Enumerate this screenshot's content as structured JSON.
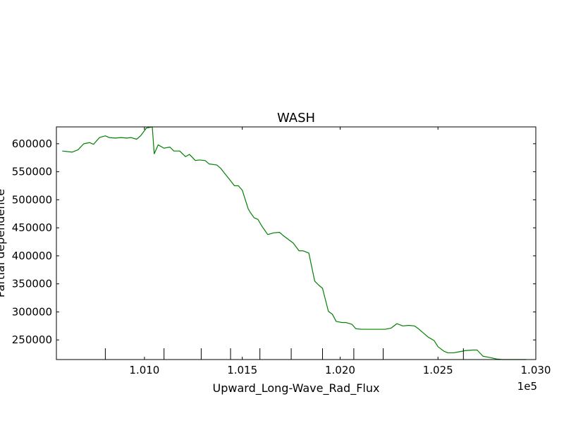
{
  "chart_data": {
    "type": "line",
    "title": "WASH",
    "xlabel": "Upward_Long-Wave_Rad_Flux",
    "ylabel": "Partial dependence",
    "x_offset_label": "1e5",
    "xlim": [
      1.0055,
      1.03
    ],
    "ylim": [
      215000,
      630000
    ],
    "xticks": [
      1.01,
      1.015,
      1.02,
      1.025,
      1.03
    ],
    "xtick_labels": [
      "1.010",
      "1.015",
      "1.020",
      "1.025",
      "1.030"
    ],
    "yticks": [
      250000,
      300000,
      350000,
      400000,
      450000,
      500000,
      550000,
      600000
    ],
    "ytick_labels": [
      "250000",
      "300000",
      "350000",
      "400000",
      "450000",
      "500000",
      "550000",
      "600000"
    ],
    "rug_x": [
      1.008,
      1.011,
      1.0129,
      1.0144,
      1.0159,
      1.0175,
      1.0191,
      1.0207,
      1.0222,
      1.0263
    ],
    "series": [
      {
        "color": "#008000",
        "x": [
          1.0058,
          1.0063,
          1.0066,
          1.0069,
          1.0072,
          1.0074,
          1.0077,
          1.008,
          1.0082,
          1.0085,
          1.0088,
          1.0091,
          1.0093,
          1.0096,
          1.0098,
          1.0101,
          1.0104,
          1.0105,
          1.0107,
          1.011,
          1.0113,
          1.0115,
          1.0118,
          1.0121,
          1.0123,
          1.0126,
          1.0128,
          1.0131,
          1.0133,
          1.0137,
          1.0139,
          1.0141,
          1.0144,
          1.0146,
          1.0148,
          1.015,
          1.0153,
          1.0154,
          1.0156,
          1.0158,
          1.016,
          1.0163,
          1.0166,
          1.0169,
          1.0171,
          1.0174,
          1.0176,
          1.0179,
          1.0181,
          1.0184,
          1.0187,
          1.0189,
          1.0191,
          1.0194,
          1.0196,
          1.0198,
          1.0201,
          1.0203,
          1.0206,
          1.0208,
          1.0211,
          1.0214,
          1.0217,
          1.022,
          1.0223,
          1.0226,
          1.0229,
          1.0232,
          1.0235,
          1.0238,
          1.024,
          1.0243,
          1.0245,
          1.0248,
          1.025,
          1.0253,
          1.0255,
          1.0258,
          1.0261,
          1.0264,
          1.0268,
          1.027,
          1.0273,
          1.0276,
          1.028,
          1.0283,
          1.0286,
          1.0289,
          1.0292,
          1.0295
        ],
        "y": [
          587000,
          585000,
          589000,
          600000,
          602000,
          599000,
          611000,
          614000,
          611000,
          610000,
          611000,
          610000,
          611000,
          608000,
          614000,
          628000,
          630000,
          582000,
          598000,
          592000,
          594000,
          587000,
          587000,
          577000,
          581000,
          570000,
          571000,
          570000,
          564000,
          562000,
          556000,
          547000,
          534000,
          525000,
          525000,
          517000,
          484000,
          478000,
          468000,
          465000,
          453000,
          438000,
          441000,
          442000,
          436000,
          428000,
          423000,
          409000,
          409000,
          405000,
          355000,
          348000,
          342000,
          301000,
          296000,
          283000,
          281000,
          281000,
          278000,
          270000,
          269000,
          269000,
          269000,
          269000,
          269000,
          271000,
          279000,
          275000,
          276000,
          275000,
          270000,
          261000,
          255000,
          249000,
          238000,
          230000,
          227000,
          227000,
          229000,
          231000,
          232000,
          232000,
          221000,
          219000,
          216000,
          215000,
          215000,
          215000,
          215000,
          215000
        ]
      }
    ]
  }
}
